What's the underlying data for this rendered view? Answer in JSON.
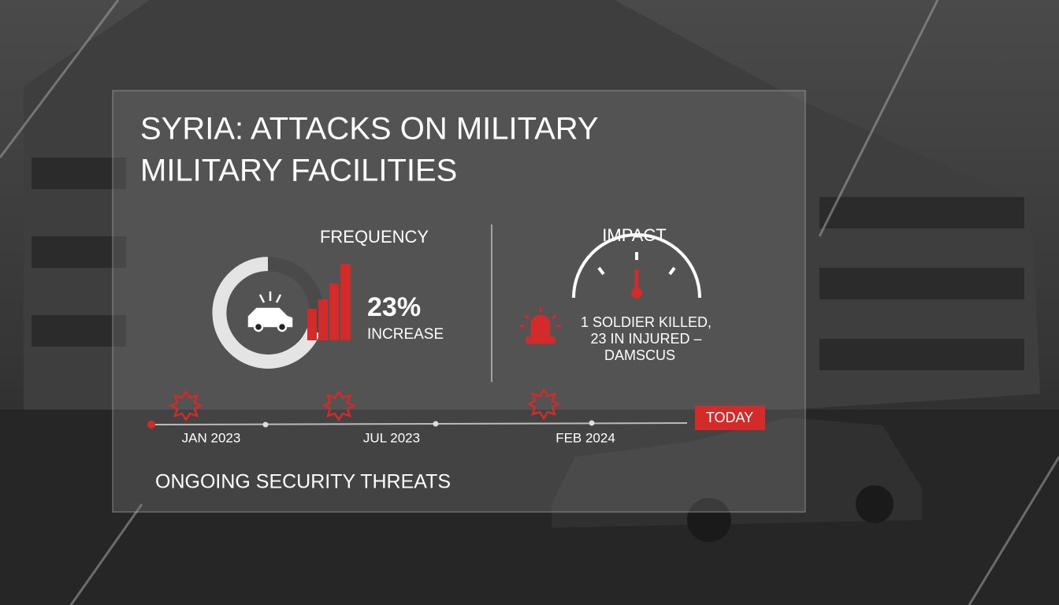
{
  "title": [
    "SYRIA: ATTACKS ON MILITARY",
    "MILITARY FACILITIES"
  ],
  "frequency": {
    "heading": "FREQUENCY",
    "stat": "23%",
    "stat_label": "INCREASE"
  },
  "impact": {
    "heading": "IMPACT",
    "lines": [
      "1 SOLDIER KILLED,",
      "23 IN INJURED –",
      "DAMSCUS"
    ]
  },
  "timeline": {
    "labels": [
      "JAN 2023",
      "JUL 2023",
      "FEB 2024"
    ],
    "today": "TODAY"
  },
  "footer": "ONGOING SECURITY THREATS"
}
